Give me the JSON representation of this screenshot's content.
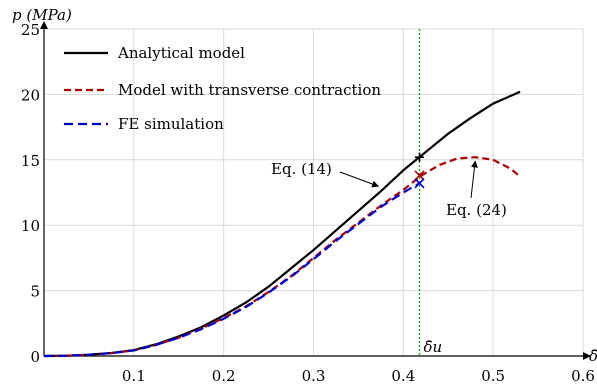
{
  "chart_data": {
    "type": "line",
    "ylabel": "p (MPa)",
    "xlabel": "δ̄",
    "xlim": [
      0,
      0.6
    ],
    "ylim": [
      0,
      25
    ],
    "xticks": [
      0.1,
      0.2,
      0.3,
      0.4,
      0.5,
      0.6
    ],
    "xtick_labels": [
      "0.1",
      "0.2",
      "0.3",
      "0.4",
      "0.5",
      "0.6"
    ],
    "yticks": [
      0,
      5,
      10,
      15,
      20,
      25
    ],
    "ytick_labels": [
      "0",
      "5",
      "10",
      "15",
      "20",
      "25"
    ],
    "grid": true,
    "legend_position": "top-left",
    "series": [
      {
        "name": "Analytical model",
        "color": "#000000",
        "style": "solid",
        "x": [
          0,
          0.025,
          0.05,
          0.075,
          0.1,
          0.125,
          0.15,
          0.175,
          0.2,
          0.225,
          0.25,
          0.275,
          0.3,
          0.325,
          0.35,
          0.375,
          0.4,
          0.425,
          0.45,
          0.475,
          0.5,
          0.53
        ],
        "y": [
          0,
          0.02,
          0.1,
          0.23,
          0.45,
          0.9,
          1.5,
          2.2,
          3.1,
          4.1,
          5.3,
          6.7,
          8.1,
          9.6,
          11.1,
          12.6,
          14.2,
          15.6,
          17.0,
          18.2,
          19.3,
          20.2
        ]
      },
      {
        "name": "Model with transverse contraction",
        "color": "#aa0000",
        "style": "dashed",
        "x": [
          0,
          0.025,
          0.05,
          0.075,
          0.1,
          0.125,
          0.15,
          0.175,
          0.2,
          0.225,
          0.25,
          0.275,
          0.3,
          0.325,
          0.35,
          0.375,
          0.4,
          0.42,
          0.44,
          0.46,
          0.48,
          0.5,
          0.52,
          0.53
        ],
        "y": [
          0,
          0.02,
          0.1,
          0.22,
          0.43,
          0.85,
          1.4,
          2.1,
          2.9,
          3.8,
          4.9,
          6.1,
          7.5,
          8.9,
          10.2,
          11.5,
          12.7,
          13.8,
          14.6,
          15.1,
          15.2,
          15.0,
          14.3,
          13.7
        ]
      },
      {
        "name": "FE simulation",
        "color": "#0000cc",
        "style": "dashed",
        "x": [
          0,
          0.025,
          0.05,
          0.075,
          0.1,
          0.125,
          0.15,
          0.175,
          0.2,
          0.225,
          0.25,
          0.275,
          0.3,
          0.325,
          0.35,
          0.375,
          0.4,
          0.418
        ],
        "y": [
          0,
          0.02,
          0.1,
          0.22,
          0.43,
          0.85,
          1.4,
          2.05,
          2.85,
          3.75,
          4.85,
          6.05,
          7.4,
          8.8,
          10.1,
          11.4,
          12.5,
          13.2
        ]
      }
    ],
    "vline": {
      "x": 0.418,
      "label": "δ̄u",
      "color": "#22aa22"
    },
    "markers": [
      {
        "x": 0.418,
        "y": 15.2,
        "symbol": "+",
        "color": "#000000"
      },
      {
        "x": 0.418,
        "y": 13.8,
        "symbol": "x",
        "color": "#aa0000"
      },
      {
        "x": 0.418,
        "y": 13.2,
        "symbol": "x",
        "color": "#0000cc"
      }
    ],
    "annotations": [
      {
        "text": "Eq. (14)",
        "target_x": 0.37,
        "target_y": 12.9
      },
      {
        "text": "Eq. (24)",
        "target_x": 0.48,
        "target_y": 15.2
      }
    ]
  }
}
